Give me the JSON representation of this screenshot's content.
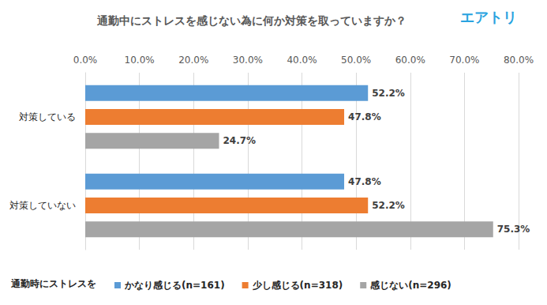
{
  "chart_data": {
    "type": "bar",
    "title": "通勤中にストレスを感じない為に何か対策を取っていますか？",
    "annotation": "エアトリ",
    "legend_title": "通勤時にストレスを",
    "orientation": "horizontal",
    "categories": [
      "対策している",
      "対策していない"
    ],
    "series": [
      {
        "name": "かなり感じる(n=161)",
        "color": "#5b9bd5",
        "values": [
          52.2,
          47.8
        ],
        "value_labels": [
          "52.2%",
          "47.8%"
        ]
      },
      {
        "name": "少し感じる(n=318)",
        "color": "#ed7d31",
        "values": [
          47.8,
          52.2
        ],
        "value_labels": [
          "47.8%",
          "52.2%"
        ]
      },
      {
        "name": "感じない(n=296)",
        "color": "#a5a5a5",
        "values": [
          24.7,
          75.3
        ],
        "value_labels": [
          "24.7%",
          "75.3%"
        ]
      }
    ],
    "xlim": [
      0,
      80
    ],
    "xticks": [
      {
        "value": 0,
        "label": "0.0%"
      },
      {
        "value": 10,
        "label": "10.0%"
      },
      {
        "value": 20,
        "label": "20.0%"
      },
      {
        "value": 30,
        "label": "30.0%"
      },
      {
        "value": 40,
        "label": "40.0%"
      },
      {
        "value": 50,
        "label": "50.0%"
      },
      {
        "value": 60,
        "label": "60.0%"
      },
      {
        "value": 70,
        "label": "70.0%"
      },
      {
        "value": 80,
        "label": "80.0%"
      }
    ],
    "grid": true,
    "legend": "bottom",
    "data_labels": true
  }
}
